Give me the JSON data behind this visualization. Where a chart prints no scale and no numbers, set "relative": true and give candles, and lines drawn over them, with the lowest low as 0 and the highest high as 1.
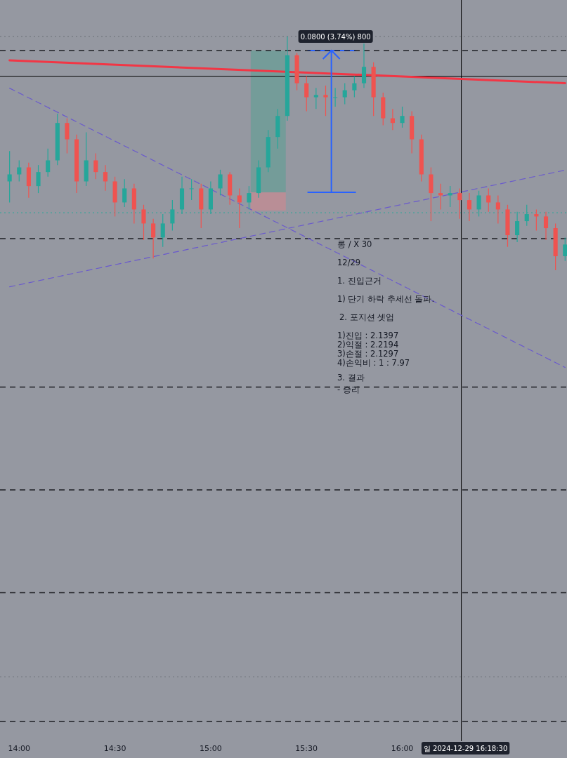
{
  "chart_data": {
    "type": "candlestick",
    "relative": true,
    "x": [
      13.95,
      14.0,
      14.05,
      14.1,
      14.15,
      14.2,
      14.25,
      14.3,
      14.35,
      14.4,
      14.45,
      14.5,
      14.55,
      14.6,
      14.65,
      14.7,
      14.75,
      14.8,
      14.85,
      14.9,
      14.95,
      15.0,
      15.05,
      15.1,
      15.15,
      15.2,
      15.25,
      15.3,
      15.35,
      15.4,
      15.45,
      15.5,
      15.55,
      15.6,
      15.65,
      15.7,
      15.75,
      15.8,
      15.85,
      15.9,
      15.95,
      16.0,
      16.05,
      16.1,
      16.15,
      16.2,
      16.25,
      16.3,
      16.35,
      16.4,
      16.45,
      16.5,
      16.55,
      16.6,
      16.65,
      16.7,
      16.75,
      16.8,
      16.85
    ],
    "ohlc": [
      [
        0.38,
        0.51,
        0.29,
        0.41
      ],
      [
        0.41,
        0.47,
        0.38,
        0.44
      ],
      [
        0.44,
        0.46,
        0.31,
        0.36
      ],
      [
        0.36,
        0.45,
        0.33,
        0.42
      ],
      [
        0.42,
        0.52,
        0.4,
        0.47
      ],
      [
        0.47,
        0.67,
        0.45,
        0.63
      ],
      [
        0.63,
        0.65,
        0.5,
        0.56
      ],
      [
        0.56,
        0.58,
        0.33,
        0.38
      ],
      [
        0.38,
        0.59,
        0.36,
        0.47
      ],
      [
        0.47,
        0.5,
        0.39,
        0.42
      ],
      [
        0.42,
        0.45,
        0.34,
        0.38
      ],
      [
        0.38,
        0.4,
        0.23,
        0.29
      ],
      [
        0.29,
        0.39,
        0.27,
        0.35
      ],
      [
        0.35,
        0.37,
        0.2,
        0.26
      ],
      [
        0.26,
        0.28,
        0.13,
        0.2
      ],
      [
        0.2,
        0.22,
        0.05,
        0.14
      ],
      [
        0.14,
        0.24,
        0.1,
        0.2
      ],
      [
        0.2,
        0.3,
        0.17,
        0.26
      ],
      [
        0.26,
        0.4,
        0.24,
        0.35
      ],
      [
        0.35,
        0.39,
        0.3,
        0.35
      ],
      [
        0.35,
        0.37,
        0.18,
        0.26
      ],
      [
        0.26,
        0.38,
        0.24,
        0.35
      ],
      [
        0.35,
        0.43,
        0.32,
        0.41
      ],
      [
        0.41,
        0.42,
        0.28,
        0.32
      ],
      [
        0.32,
        0.35,
        0.18,
        0.29
      ],
      [
        0.29,
        0.36,
        0.26,
        0.33
      ],
      [
        0.33,
        0.47,
        0.31,
        0.44
      ],
      [
        0.44,
        0.6,
        0.42,
        0.57
      ],
      [
        0.57,
        0.69,
        0.52,
        0.66
      ],
      [
        0.66,
        1.0,
        0.64,
        0.92
      ],
      [
        0.92,
        0.93,
        0.77,
        0.8
      ],
      [
        0.8,
        0.83,
        0.68,
        0.74
      ],
      [
        0.74,
        0.78,
        0.69,
        0.75
      ],
      [
        0.75,
        0.79,
        0.66,
        0.74
      ],
      [
        0.74,
        0.78,
        0.7,
        0.74
      ],
      [
        0.74,
        0.8,
        0.71,
        0.77
      ],
      [
        0.77,
        0.83,
        0.74,
        0.8
      ],
      [
        0.8,
        0.97,
        0.78,
        0.87
      ],
      [
        0.87,
        0.89,
        0.66,
        0.74
      ],
      [
        0.74,
        0.76,
        0.62,
        0.65
      ],
      [
        0.65,
        0.69,
        0.6,
        0.63
      ],
      [
        0.63,
        0.7,
        0.61,
        0.66
      ],
      [
        0.66,
        0.68,
        0.5,
        0.56
      ],
      [
        0.56,
        0.58,
        0.38,
        0.41
      ],
      [
        0.41,
        0.44,
        0.21,
        0.33
      ],
      [
        0.33,
        0.37,
        0.26,
        0.32
      ],
      [
        0.32,
        0.36,
        0.27,
        0.33
      ],
      [
        0.33,
        0.35,
        0.22,
        0.3
      ],
      [
        0.3,
        0.33,
        0.21,
        0.26
      ],
      [
        0.26,
        0.34,
        0.23,
        0.32
      ],
      [
        0.32,
        0.35,
        0.25,
        0.29
      ],
      [
        0.29,
        0.32,
        0.2,
        0.26
      ],
      [
        0.26,
        0.28,
        0.1,
        0.15
      ],
      [
        0.15,
        0.25,
        0.12,
        0.21
      ],
      [
        0.21,
        0.28,
        0.19,
        0.24
      ],
      [
        0.24,
        0.26,
        0.17,
        0.23
      ],
      [
        0.23,
        0.25,
        0.13,
        0.18
      ],
      [
        0.18,
        0.2,
        0.0,
        0.06
      ],
      [
        0.06,
        0.14,
        0.04,
        0.11
      ]
    ],
    "series": [
      {
        "type": "line",
        "color": "#f23645",
        "line_style": "solid",
        "x": [
          13.95,
          16.85
        ],
        "values": [
          0.898,
          0.8
        ]
      },
      {
        "type": "line",
        "color": "#6a5acd",
        "line_style": "dashed",
        "x": [
          13.95,
          16.85
        ],
        "values": [
          0.779,
          -0.416
        ]
      },
      {
        "type": "line",
        "color": "#6a5acd",
        "line_style": "dashed",
        "x": [
          13.95,
          16.85
        ],
        "values": [
          -0.071,
          0.428
        ]
      },
      {
        "type": "line",
        "color": "#2962ff",
        "line_style": "solid",
        "x": [
          15.63,
          15.63
        ],
        "values": [
          0.333,
          0.94
        ]
      }
    ],
    "xlim": [
      13.9,
      16.86
    ],
    "xticks": [
      {
        "value": 14,
        "label": "14:00"
      },
      {
        "value": 14.5,
        "label": "14:30"
      },
      {
        "value": 15,
        "label": "15:00"
      },
      {
        "value": 15.5,
        "label": "15:30"
      },
      {
        "value": 16,
        "label": "16:00"
      }
    ],
    "ref_lines": [
      {
        "axis": "y",
        "value": 0.94,
        "color": "#1e1f24",
        "line_style": "dashed"
      },
      {
        "axis": "y",
        "value": 0.135,
        "color": "#1e1f24",
        "line_style": "dashed"
      },
      {
        "axis": "y",
        "value": -0.5,
        "color": "#1e1f24",
        "line_style": "dashed"
      },
      {
        "axis": "y",
        "value": -0.94,
        "color": "#1e1f24",
        "line_style": "dashed"
      },
      {
        "axis": "y",
        "value": -1.38,
        "color": "#1e1f24",
        "line_style": "dashed"
      },
      {
        "axis": "y",
        "value": -1.93,
        "color": "#1e1f24",
        "line_style": "dashed"
      },
      {
        "axis": "y",
        "value": 1.0,
        "color": "#6b6e76",
        "line_style": "dotted"
      },
      {
        "axis": "y",
        "value": -1.74,
        "color": "#6b6e76",
        "line_style": "dotted"
      },
      {
        "axis": "y",
        "value": 0.246,
        "color": "#26a69a",
        "line_style": "dotted"
      },
      {
        "axis": "y",
        "value": 0.83,
        "color": "#000000",
        "line_style": "solid"
      },
      {
        "axis": "x",
        "value": 16.3083,
        "color": "#000000",
        "line_style": "solid"
      }
    ],
    "annotations": [
      "0.0800 (3.74%) 800",
      "일 2024-12-29  16:18:30",
      "롱 / X 30",
      "12/29",
      "1. 진입근거",
      "1) 단기 하락 추세선 돌파.",
      "2. 포지션 셋업",
      "1)진입 : 2.1397",
      "2)익절 : 2.2194",
      "3)손절 : 2.1297",
      "4)손익비 : 1 : 7.97",
      "3. 결과",
      "- 승리"
    ]
  }
}
